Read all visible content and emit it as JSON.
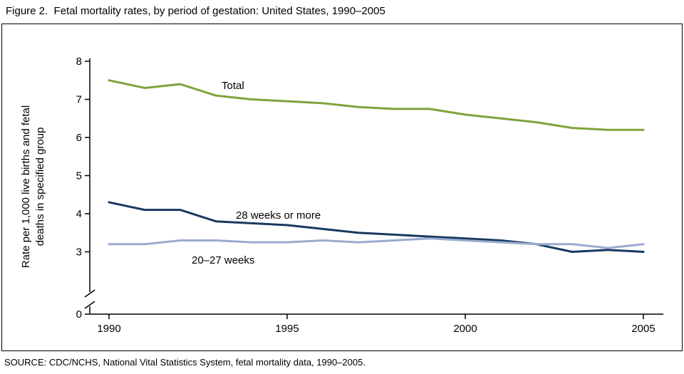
{
  "chart_data": {
    "type": "line",
    "title": "Figure 2.  Fetal mortality rates, by period of gestation: United States, 1990–2005",
    "source": "SOURCE: CDC/NCHS, National Vital Statistics System, fetal mortality data, 1990–2005.",
    "ylabel_lines": [
      "Rate per 1,000 live births and fetal",
      "deaths in specified group"
    ],
    "xlabel": "",
    "x": [
      1990,
      1991,
      1992,
      1993,
      1994,
      1995,
      1996,
      1997,
      1998,
      1999,
      2000,
      2001,
      2002,
      2003,
      2004,
      2005
    ],
    "x_ticks": [
      1990,
      1995,
      2000,
      2005
    ],
    "y_ticks": [
      0,
      3,
      4,
      5,
      6,
      7,
      8
    ],
    "ylim": [
      0,
      8
    ],
    "axis_break": true,
    "grid": false,
    "legend": "inline-labels",
    "series": [
      {
        "id": "weeks-28-more",
        "name": "28 weeks or more",
        "color": "#17395F",
        "values": [
          4.3,
          4.1,
          4.1,
          3.8,
          3.75,
          3.7,
          3.6,
          3.5,
          3.45,
          3.4,
          3.35,
          3.3,
          3.2,
          3.0,
          3.05,
          3.0
        ]
      },
      {
        "id": "weeks-20-27",
        "name": "20–27 weeks",
        "color": "#98ABCF",
        "values": [
          3.2,
          3.2,
          3.3,
          3.3,
          3.25,
          3.25,
          3.3,
          3.25,
          3.3,
          3.35,
          3.3,
          3.25,
          3.2,
          3.2,
          3.1,
          3.2
        ]
      },
      {
        "id": "total",
        "name": "Total",
        "color": "#7FA33C",
        "values": [
          7.5,
          7.3,
          7.4,
          7.1,
          7.0,
          6.95,
          6.9,
          6.8,
          6.75,
          6.75,
          6.6,
          6.5,
          6.4,
          6.25,
          6.2,
          6.2
        ]
      }
    ],
    "colors": {
      "axis": "#000000",
      "total": "#7FA33C",
      "weeks_28_more": "#17395F",
      "weeks_20_27": "#98ABCF"
    }
  }
}
